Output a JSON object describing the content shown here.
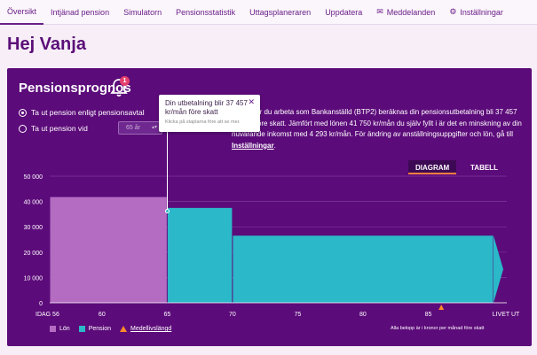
{
  "nav": {
    "tabs": [
      {
        "label": "Översikt",
        "icon": null
      },
      {
        "label": "Intjänad pension",
        "icon": null
      },
      {
        "label": "Simulatorn",
        "icon": null
      },
      {
        "label": "Pensionsstatistik",
        "icon": null
      },
      {
        "label": "Uttagsplaneraren",
        "icon": null
      },
      {
        "label": "Uppdatera",
        "icon": null
      },
      {
        "label": "Meddelanden",
        "icon": "envelope-icon"
      },
      {
        "label": "Inställningar",
        "icon": "gear-icon"
      }
    ],
    "active_index": 0
  },
  "greeting": "Hej Vanja",
  "panel": {
    "title": "Pensionsprognos",
    "notification_count": "1",
    "radio1_label": "Ta ut pension enligt pensionsavtal",
    "radio2_label": "Ta ut pension vid",
    "age_select_value": "65 år",
    "description": "Fortsätter du arbeta som Bankanställd (BTP2) beräknas din pensionsutbetalning bli 37 457 kr/mån före skatt. Jämfört med lönen 41 750 kr/mån du själv fyllt i är det en minskning av din nuvarande inkomst med 4 293 kr/mån. För ändring av anställningsuppgifter och lön, gå till",
    "description_link": "Inställningar",
    "description_end": ".",
    "toggle_diagram": "DIAGRAM",
    "toggle_table": "TABELL"
  },
  "tooltip": {
    "title": "Din utbetalning blir 37 457 kr/mån före skatt",
    "subtitle": "Klicka på staplarna före att se mer."
  },
  "colors": {
    "salary": "#b46cc3",
    "pension": "#2bb8c9",
    "life_expectancy": "#ff8a2b",
    "panel_bg": "#5c0b7a"
  },
  "chart_data": {
    "type": "area",
    "y_ticks": [
      "50 000",
      "40 000",
      "30 000",
      "20 000",
      "10 000",
      "0"
    ],
    "ylim": [
      0,
      50000
    ],
    "x_ticks": [
      "IDAG 56",
      "60",
      "65",
      "70",
      "75",
      "80",
      "85",
      "LIVET UT"
    ],
    "x_tick_values": [
      56,
      60,
      65,
      70,
      75,
      80,
      85,
      90
    ],
    "xlim": [
      56,
      90
    ],
    "series": [
      {
        "name": "Lön",
        "segments": [
          {
            "from": 56,
            "to": 65,
            "value": 41750
          }
        ]
      },
      {
        "name": "Pension",
        "segments": [
          {
            "from": 65,
            "to": 70,
            "value": 37457
          },
          {
            "from": 70,
            "to": 90,
            "value": 26500
          }
        ]
      }
    ],
    "life_expectancy_x": 86,
    "legend": [
      "Lön",
      "Pension",
      "Medellivslängd"
    ],
    "footnote": "Alla belopp är i kronor per månad före skatt"
  }
}
